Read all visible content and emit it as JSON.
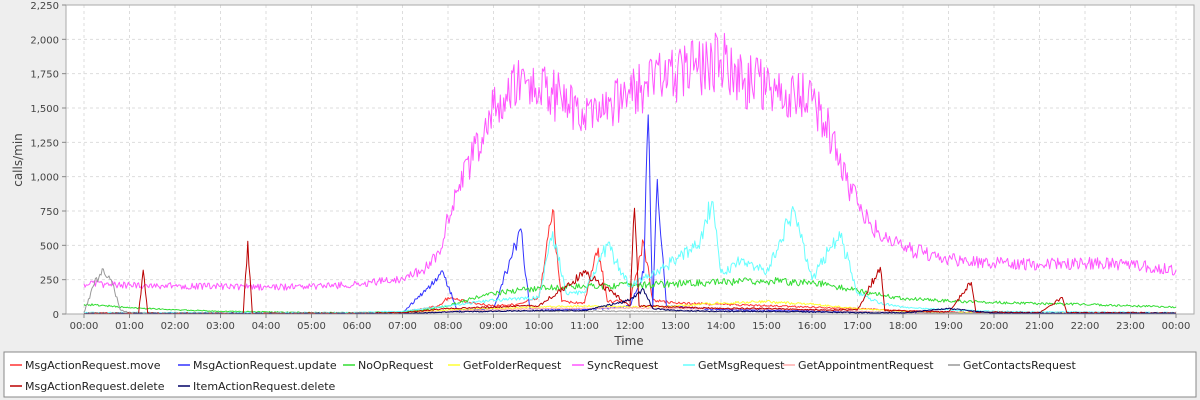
{
  "chart_data": {
    "type": "line",
    "xlabel": "Time",
    "ylabel": "calls/min",
    "ylim": [
      0,
      2250
    ],
    "xlim_hours": [
      0,
      24
    ],
    "x_ticks": [
      "00:00",
      "01:00",
      "02:00",
      "03:00",
      "04:00",
      "05:00",
      "06:00",
      "07:00",
      "08:00",
      "09:00",
      "10:00",
      "11:00",
      "12:00",
      "13:00",
      "14:00",
      "15:00",
      "16:00",
      "17:00",
      "18:00",
      "19:00",
      "20:00",
      "21:00",
      "22:00",
      "23:00",
      "00:00"
    ],
    "y_ticks": [
      0,
      250,
      500,
      750,
      1000,
      1250,
      1500,
      1750,
      2000,
      2250
    ],
    "y_tick_labels": [
      "0",
      "250",
      "500",
      "750",
      "1,000",
      "1,250",
      "1,500",
      "1,750",
      "2,000",
      "2,250"
    ],
    "grid": true,
    "legend_position": "bottom",
    "series": [
      {
        "name": "MsgActionRequest.move",
        "color": "#ff3333",
        "points": [
          [
            0,
            5
          ],
          [
            1,
            5
          ],
          [
            2,
            5
          ],
          [
            3,
            5
          ],
          [
            4,
            5
          ],
          [
            5,
            5
          ],
          [
            6,
            5
          ],
          [
            7,
            15
          ],
          [
            7.8,
            60
          ],
          [
            8,
            120
          ],
          [
            8.5,
            80
          ],
          [
            9,
            60
          ],
          [
            9.5,
            70
          ],
          [
            10,
            120
          ],
          [
            10.3,
            760
          ],
          [
            10.5,
            90
          ],
          [
            11,
            80
          ],
          [
            11.3,
            480
          ],
          [
            11.5,
            90
          ],
          [
            12,
            100
          ],
          [
            12.3,
            520
          ],
          [
            12.5,
            100
          ],
          [
            13,
            80
          ],
          [
            14,
            70
          ],
          [
            15,
            60
          ],
          [
            16,
            50
          ],
          [
            17,
            40
          ],
          [
            18,
            25
          ],
          [
            19,
            15
          ],
          [
            20,
            10
          ],
          [
            21,
            10
          ],
          [
            22,
            10
          ],
          [
            23,
            8
          ],
          [
            24,
            8
          ]
        ]
      },
      {
        "name": "MsgActionRequest.update",
        "color": "#3333ff",
        "points": [
          [
            0,
            5
          ],
          [
            1,
            5
          ],
          [
            2,
            5
          ],
          [
            3,
            5
          ],
          [
            4,
            5
          ],
          [
            5,
            5
          ],
          [
            6,
            5
          ],
          [
            7,
            10
          ],
          [
            7.9,
            300
          ],
          [
            8.2,
            30
          ],
          [
            9,
            40
          ],
          [
            9.6,
            620
          ],
          [
            9.8,
            40
          ],
          [
            10.5,
            30
          ],
          [
            11.5,
            40
          ],
          [
            12,
            60
          ],
          [
            12.3,
            300
          ],
          [
            12.4,
            1450
          ],
          [
            12.5,
            60
          ],
          [
            12.6,
            980
          ],
          [
            12.8,
            60
          ],
          [
            13.5,
            40
          ],
          [
            14,
            30
          ],
          [
            15,
            30
          ],
          [
            16,
            20
          ],
          [
            17,
            15
          ],
          [
            18,
            10
          ],
          [
            19,
            8
          ],
          [
            20,
            8
          ],
          [
            21,
            6
          ],
          [
            22,
            6
          ],
          [
            23,
            5
          ],
          [
            24,
            5
          ]
        ]
      },
      {
        "name": "NoOpRequest",
        "color": "#33dd33",
        "points": [
          [
            0,
            70
          ],
          [
            0.5,
            60
          ],
          [
            1,
            45
          ],
          [
            1.5,
            40
          ],
          [
            2,
            30
          ],
          [
            3,
            20
          ],
          [
            4,
            15
          ],
          [
            5,
            10
          ],
          [
            6,
            10
          ],
          [
            7,
            15
          ],
          [
            7.5,
            30
          ],
          [
            8,
            60
          ],
          [
            8.5,
            110
          ],
          [
            9,
            150
          ],
          [
            9.5,
            170
          ],
          [
            10,
            190
          ],
          [
            11,
            200
          ],
          [
            12,
            210
          ],
          [
            13,
            220
          ],
          [
            14,
            230
          ],
          [
            15,
            240
          ],
          [
            16,
            230
          ],
          [
            16.5,
            200
          ],
          [
            17,
            170
          ],
          [
            17.5,
            140
          ],
          [
            18,
            115
          ],
          [
            19,
            95
          ],
          [
            20,
            85
          ],
          [
            21,
            75
          ],
          [
            22,
            70
          ],
          [
            23,
            60
          ],
          [
            24,
            50
          ]
        ]
      },
      {
        "name": "GetFolderRequest",
        "color": "#ffff33",
        "points": [
          [
            0,
            3
          ],
          [
            2,
            3
          ],
          [
            4,
            3
          ],
          [
            6,
            3
          ],
          [
            7,
            5
          ],
          [
            8,
            30
          ],
          [
            9,
            40
          ],
          [
            10,
            50
          ],
          [
            11,
            60
          ],
          [
            12,
            50
          ],
          [
            13,
            60
          ],
          [
            14,
            80
          ],
          [
            15,
            90
          ],
          [
            16,
            70
          ],
          [
            17,
            40
          ],
          [
            18,
            20
          ],
          [
            19,
            10
          ],
          [
            20,
            8
          ],
          [
            21,
            6
          ],
          [
            22,
            5
          ],
          [
            23,
            5
          ],
          [
            24,
            5
          ]
        ]
      },
      {
        "name": "SyncRequest",
        "color": "#ff55ff",
        "points": [
          [
            0,
            220
          ],
          [
            1,
            210
          ],
          [
            2,
            205
          ],
          [
            3,
            200
          ],
          [
            4,
            195
          ],
          [
            5,
            200
          ],
          [
            6,
            215
          ],
          [
            7,
            260
          ],
          [
            7.5,
            330
          ],
          [
            7.8,
            450
          ],
          [
            8,
            700
          ],
          [
            8.2,
            900
          ],
          [
            8.5,
            1100
          ],
          [
            8.8,
            1350
          ],
          [
            9,
            1500
          ],
          [
            9.3,
            1550
          ],
          [
            9.6,
            1700
          ],
          [
            10,
            1650
          ],
          [
            10.3,
            1600
          ],
          [
            10.5,
            1550
          ],
          [
            11,
            1450
          ],
          [
            11.3,
            1400
          ],
          [
            11.6,
            1500
          ],
          [
            12,
            1600
          ],
          [
            12.5,
            1700
          ],
          [
            13,
            1750
          ],
          [
            13.5,
            1800
          ],
          [
            14,
            1850
          ],
          [
            14.5,
            1700
          ],
          [
            15,
            1650
          ],
          [
            15.5,
            1600
          ],
          [
            16,
            1550
          ],
          [
            16.3,
            1400
          ],
          [
            16.6,
            1100
          ],
          [
            17,
            800
          ],
          [
            17.3,
            650
          ],
          [
            17.6,
            550
          ],
          [
            18,
            480
          ],
          [
            18.5,
            440
          ],
          [
            19,
            400
          ],
          [
            19.5,
            380
          ],
          [
            20,
            370
          ],
          [
            21,
            360
          ],
          [
            22,
            370
          ],
          [
            23,
            360
          ],
          [
            24,
            320
          ]
        ]
      },
      {
        "name": "GetMsgRequest",
        "color": "#66ffff",
        "points": [
          [
            0,
            10
          ],
          [
            2,
            10
          ],
          [
            4,
            10
          ],
          [
            6,
            10
          ],
          [
            7,
            20
          ],
          [
            8,
            60
          ],
          [
            9,
            100
          ],
          [
            10,
            120
          ],
          [
            10.3,
            600
          ],
          [
            10.6,
            150
          ],
          [
            11,
            160
          ],
          [
            11.5,
            500
          ],
          [
            12,
            200
          ],
          [
            12.8,
            350
          ],
          [
            13.5,
            500
          ],
          [
            13.8,
            820
          ],
          [
            14,
            300
          ],
          [
            14.5,
            400
          ],
          [
            15,
            300
          ],
          [
            15.6,
            760
          ],
          [
            16,
            250
          ],
          [
            16.6,
            600
          ],
          [
            17,
            150
          ],
          [
            17.5,
            80
          ],
          [
            18,
            50
          ],
          [
            19,
            30
          ],
          [
            20,
            20
          ],
          [
            21,
            15
          ],
          [
            22,
            15
          ],
          [
            23,
            12
          ],
          [
            24,
            10
          ]
        ]
      },
      {
        "name": "GetAppointmentRequest",
        "color": "#ffaaaa",
        "points": [
          [
            0,
            2
          ],
          [
            4,
            2
          ],
          [
            7,
            5
          ],
          [
            8,
            20
          ],
          [
            9,
            30
          ],
          [
            10,
            40
          ],
          [
            11,
            40
          ],
          [
            12,
            45
          ],
          [
            13,
            40
          ],
          [
            14,
            40
          ],
          [
            15,
            35
          ],
          [
            16,
            30
          ],
          [
            17,
            20
          ],
          [
            18,
            10
          ],
          [
            19,
            5
          ],
          [
            20,
            5
          ],
          [
            22,
            4
          ],
          [
            24,
            3
          ]
        ]
      },
      {
        "name": "GetContactsRequest",
        "color": "#999999",
        "points": [
          [
            0,
            10
          ],
          [
            0.2,
            200
          ],
          [
            0.4,
            330
          ],
          [
            0.6,
            250
          ],
          [
            0.8,
            30
          ],
          [
            1,
            10
          ],
          [
            2,
            5
          ],
          [
            4,
            5
          ],
          [
            7,
            5
          ],
          [
            8,
            15
          ],
          [
            9,
            20
          ],
          [
            12,
            20
          ],
          [
            16,
            15
          ],
          [
            20,
            5
          ],
          [
            24,
            5
          ]
        ]
      },
      {
        "name": "MsgActionRequest.delete",
        "color": "#bb0000",
        "points": [
          [
            0,
            5
          ],
          [
            1.2,
            5
          ],
          [
            1.3,
            320
          ],
          [
            1.4,
            5
          ],
          [
            3,
            5
          ],
          [
            3.5,
            5
          ],
          [
            3.6,
            530
          ],
          [
            3.7,
            5
          ],
          [
            6,
            5
          ],
          [
            7,
            10
          ],
          [
            8,
            40
          ],
          [
            9,
            50
          ],
          [
            10,
            60
          ],
          [
            11,
            300
          ],
          [
            12,
            60
          ],
          [
            12.1,
            770
          ],
          [
            12.2,
            60
          ],
          [
            13,
            50
          ],
          [
            14,
            40
          ],
          [
            15,
            40
          ],
          [
            16,
            30
          ],
          [
            17,
            30
          ],
          [
            17.5,
            340
          ],
          [
            17.6,
            25
          ],
          [
            19,
            15
          ],
          [
            19.5,
            230
          ],
          [
            19.6,
            15
          ],
          [
            21,
            10
          ],
          [
            21.5,
            120
          ],
          [
            21.6,
            10
          ],
          [
            24,
            8
          ]
        ]
      },
      {
        "name": "ItemActionRequest.delete",
        "color": "#000066",
        "points": [
          [
            0,
            2
          ],
          [
            7,
            3
          ],
          [
            8,
            15
          ],
          [
            9,
            20
          ],
          [
            10,
            25
          ],
          [
            11,
            25
          ],
          [
            12,
            100
          ],
          [
            12.3,
            180
          ],
          [
            12.5,
            40
          ],
          [
            13,
            25
          ],
          [
            14,
            20
          ],
          [
            15,
            20
          ],
          [
            16,
            15
          ],
          [
            17,
            10
          ],
          [
            18,
            8
          ],
          [
            19,
            40
          ],
          [
            20,
            6
          ],
          [
            22,
            5
          ],
          [
            24,
            5
          ]
        ]
      }
    ]
  }
}
